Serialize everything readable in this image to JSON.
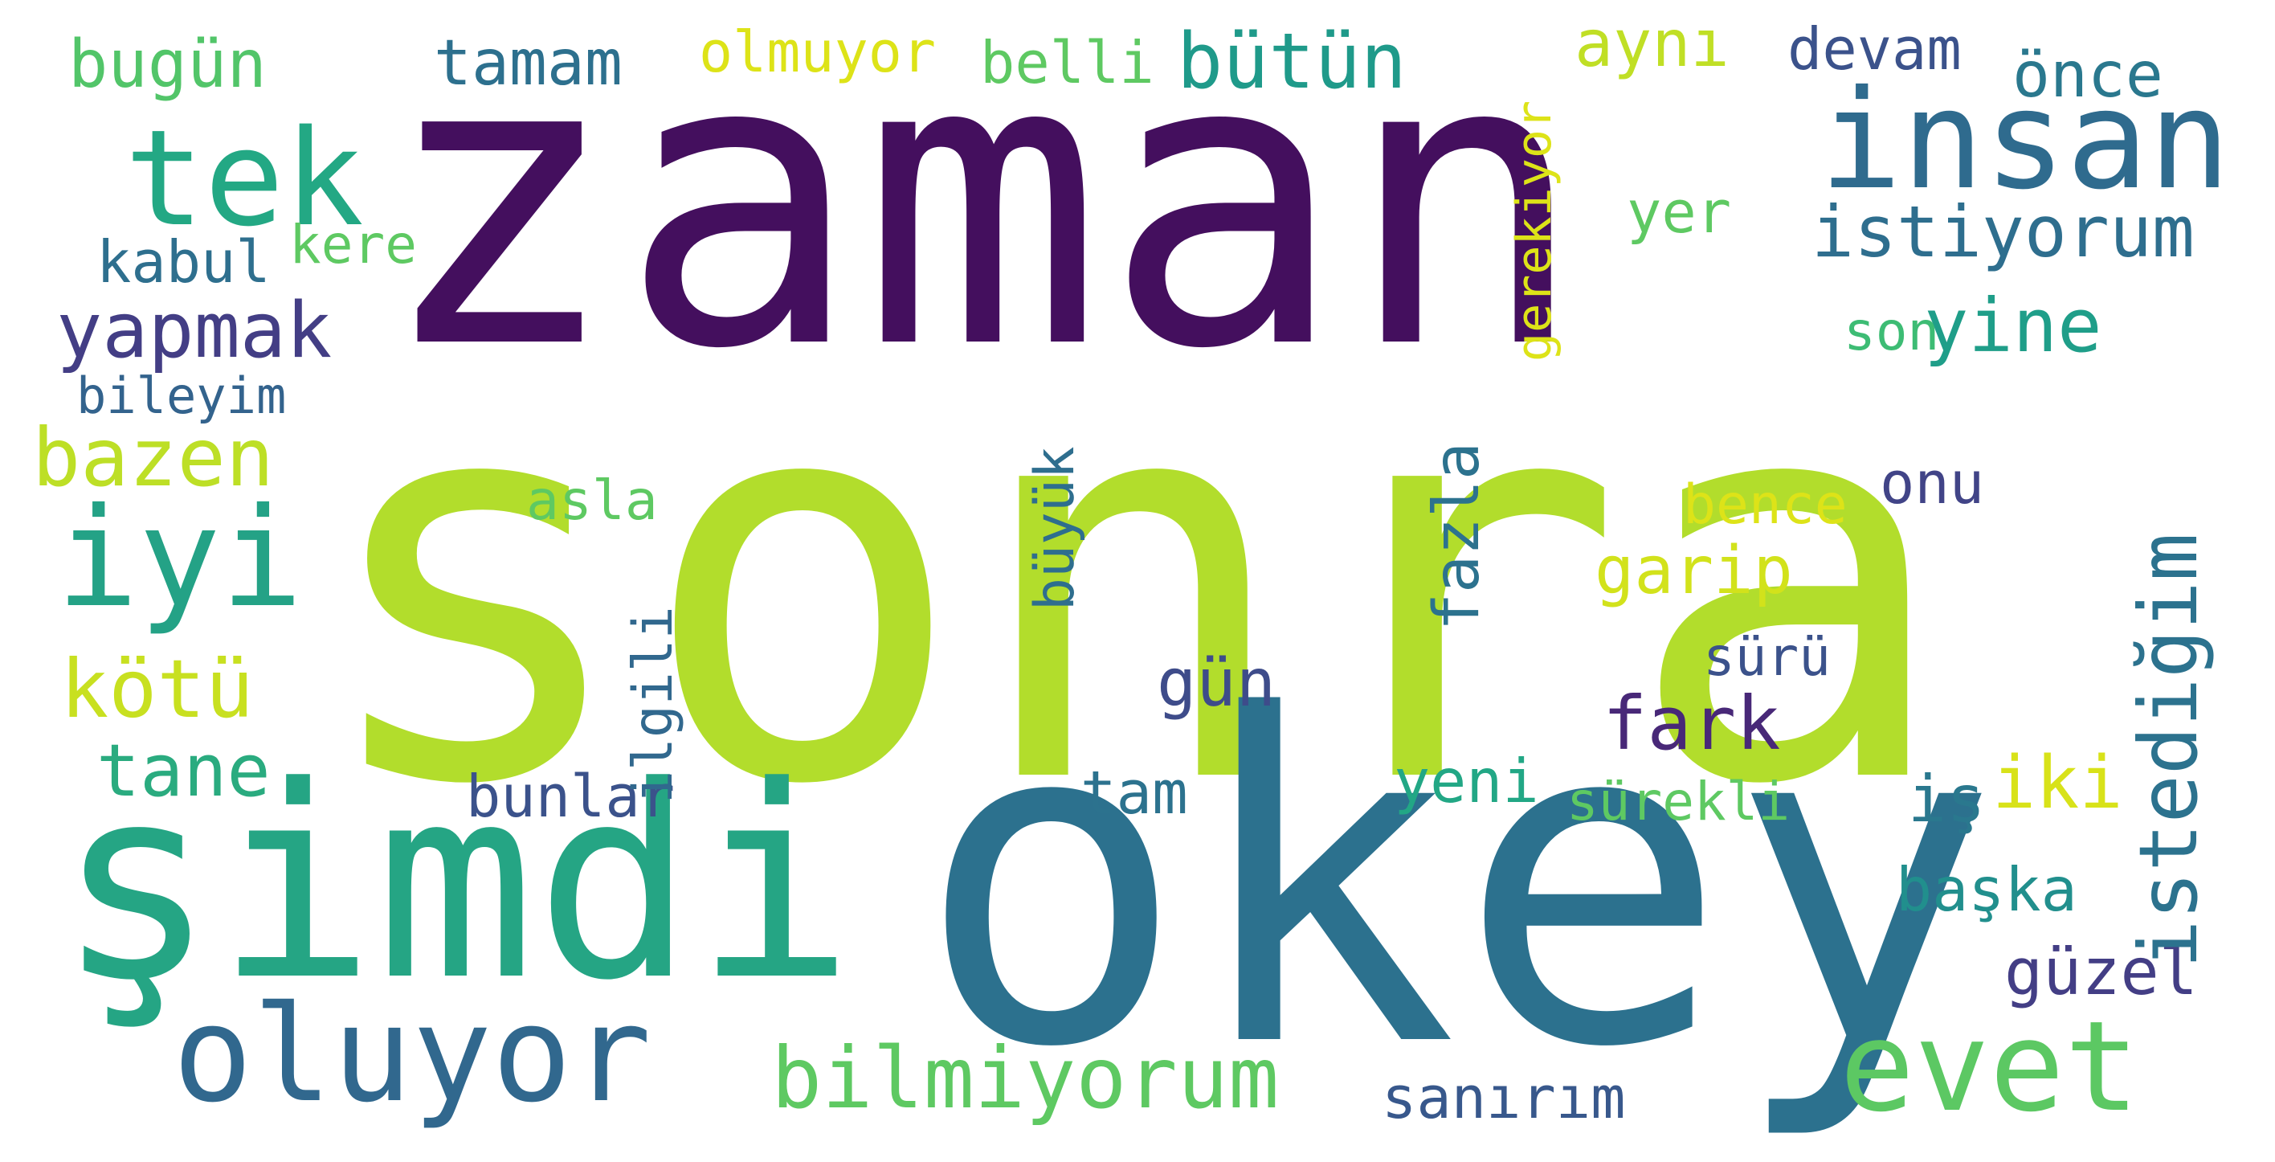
{
  "words": {
    "sonra": {
      "text": "sonra",
      "color": "#b2dd2c"
    },
    "zaman": {
      "text": "zaman",
      "color": "#440f5e"
    },
    "simdi": {
      "text": "şimdi",
      "color": "#25a584"
    },
    "okey": {
      "text": "okey",
      "color": "#2c718e"
    },
    "insan": {
      "text": "insan",
      "color": "#2f6b8e"
    },
    "tek": {
      "text": "tek",
      "color": "#23a884"
    },
    "iyi": {
      "text": "iyi",
      "color": "#24a286"
    },
    "oluyor": {
      "text": "oluyor",
      "color": "#31688e"
    },
    "evet": {
      "text": "evet",
      "color": "#5cc863"
    },
    "bilmiyorum": {
      "text": "bilmiyorum",
      "color": "#5ec962"
    },
    "istedigim": {
      "text": "istediğim",
      "color": "#2c728e"
    },
    "istiyorum": {
      "text": "istiyorum",
      "color": "#2e6e8e"
    },
    "yapmak": {
      "text": "yapmak",
      "color": "#433e85"
    },
    "bazen": {
      "text": "bazen",
      "color": "#bddf26"
    },
    "kotu": {
      "text": "kötü",
      "color": "#c8e020"
    },
    "tane": {
      "text": "tane",
      "color": "#2aab7f"
    },
    "bugun": {
      "text": "bugün",
      "color": "#52c569"
    },
    "tamam": {
      "text": "tamam",
      "color": "#2d708e"
    },
    "butun": {
      "text": "bütün",
      "color": "#1f9a8a"
    },
    "ayni": {
      "text": "aynı",
      "color": "#c0df25"
    },
    "devam": {
      "text": "devam",
      "color": "#3b528b"
    },
    "once": {
      "text": "önce",
      "color": "#2a788e"
    },
    "olmuyor": {
      "text": "olmuyor",
      "color": "#dde318"
    },
    "belli": {
      "text": "belli",
      "color": "#5ec962"
    },
    "kabul": {
      "text": "kabul",
      "color": "#2e6f8e"
    },
    "kere": {
      "text": "kere",
      "color": "#5ec962"
    },
    "bileyim": {
      "text": "bileyim",
      "color": "#33638d"
    },
    "yine": {
      "text": "yine",
      "color": "#1f9e89"
    },
    "son": {
      "text": "son",
      "color": "#3dbc74"
    },
    "yer": {
      "text": "yer",
      "color": "#5ec962"
    },
    "gerekiyor": {
      "text": "gerekiyor",
      "color": "#dde318"
    },
    "fazla": {
      "text": "fazla",
      "color": "#2c728e"
    },
    "garip": {
      "text": "garip",
      "color": "#d2e21b"
    },
    "onu": {
      "text": "onu",
      "color": "#414487"
    },
    "bence": {
      "text": "bence",
      "color": "#dde318"
    },
    "asla": {
      "text": "asla",
      "color": "#5ec962"
    },
    "buyuk": {
      "text": "büyük",
      "color": "#2e6e8e"
    },
    "ilgili": {
      "text": "ilgili",
      "color": "#31688e"
    },
    "gun": {
      "text": "gün",
      "color": "#3e4c8a"
    },
    "fark": {
      "text": "fark",
      "color": "#482878"
    },
    "suru": {
      "text": "sürü",
      "color": "#3b528b"
    },
    "bunlar": {
      "text": "bunlar",
      "color": "#3b528b"
    },
    "tam": {
      "text": "tam",
      "color": "#2c728e"
    },
    "yeni": {
      "text": "yeni",
      "color": "#22a785"
    },
    "surekli": {
      "text": "sürekli",
      "color": "#5ec962"
    },
    "is": {
      "text": "iş",
      "color": "#2a788e"
    },
    "iki": {
      "text": "iki",
      "color": "#d8e219"
    },
    "baska": {
      "text": "başka",
      "color": "#218f8d"
    },
    "guzel": {
      "text": "güzel",
      "color": "#433e85"
    },
    "sanirim": {
      "text": "sanırım",
      "color": "#38588c"
    }
  }
}
